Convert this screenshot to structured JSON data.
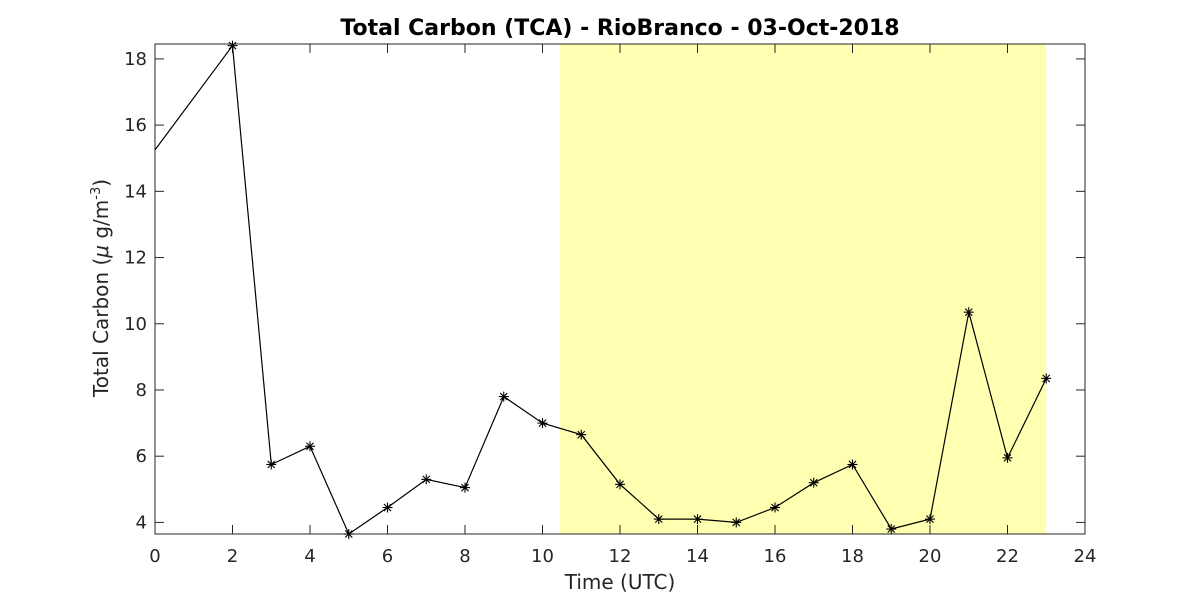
{
  "colors": {
    "highlight": "#ffffb2",
    "series": "#000000",
    "axis": "#262626"
  },
  "chart_data": {
    "type": "line",
    "title": "Total Carbon (TCA) - RioBranco - 03-Oct-2018",
    "xlabel": "Time (UTC)",
    "ylabel_parts": {
      "prefix": "Total Carbon (",
      "mu": "μ",
      "unit": " g/m",
      "exponent": "-3",
      "suffix": ")"
    },
    "xlim": [
      0,
      24
    ],
    "ylim": [
      3.65,
      18.45
    ],
    "xticks": [
      0,
      2,
      4,
      6,
      8,
      10,
      12,
      14,
      16,
      18,
      20,
      22,
      24
    ],
    "xtick_labels": [
      "0",
      "2",
      "4",
      "6",
      "8",
      "10",
      "12",
      "14",
      "16",
      "18",
      "20",
      "22",
      "24"
    ],
    "yticks": [
      4,
      6,
      8,
      10,
      12,
      14,
      16,
      18
    ],
    "ytick_labels": [
      "4",
      "6",
      "8",
      "10",
      "12",
      "14",
      "16",
      "18"
    ],
    "highlight_span": [
      10.45,
      23
    ],
    "grid": false,
    "series": [
      {
        "x": [
          0,
          2,
          3,
          4,
          5,
          6,
          7,
          8,
          9,
          10,
          11,
          12,
          13,
          14,
          15,
          16,
          17,
          18,
          19,
          20,
          21,
          22,
          23
        ],
        "y": [
          15.25,
          18.4,
          5.75,
          6.3,
          3.65,
          4.45,
          5.3,
          5.05,
          7.8,
          7.0,
          6.65,
          5.15,
          4.1,
          4.1,
          4.0,
          4.45,
          5.2,
          5.75,
          3.8,
          4.1,
          10.35,
          5.95,
          8.35
        ],
        "markers": [
          false,
          true,
          true,
          true,
          true,
          true,
          true,
          true,
          true,
          true,
          true,
          true,
          true,
          true,
          true,
          true,
          true,
          true,
          true,
          true,
          true,
          true,
          true
        ],
        "marker": "asterisk"
      }
    ]
  }
}
